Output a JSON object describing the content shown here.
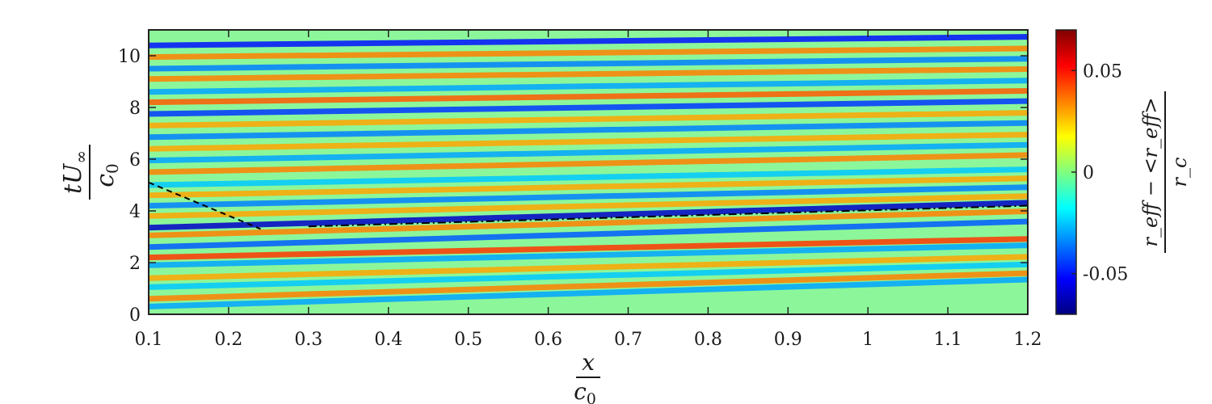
{
  "chart_data": {
    "type": "heatmap",
    "title": "",
    "colormap": "jet",
    "x_range": [
      0.1,
      1.2
    ],
    "y_range": [
      0,
      11
    ],
    "x_ticks": [
      0.1,
      0.2,
      0.3,
      0.4,
      0.5,
      0.6,
      0.7,
      0.8,
      0.9,
      1.0,
      1.1,
      1.2
    ],
    "x_tick_labels": [
      "0.1",
      "0.2",
      "0.3",
      "0.4",
      "0.5",
      "0.6",
      "0.7",
      "0.8",
      "0.9",
      "1",
      "1.1",
      "1.2"
    ],
    "y_ticks": [
      0,
      2,
      4,
      6,
      8,
      10
    ],
    "y_tick_labels": [
      "0",
      "2",
      "4",
      "6",
      "8",
      "10"
    ],
    "xlabel": {
      "numerator": "x",
      "denominator": "c",
      "denominator_sub": "0"
    },
    "ylabel": {
      "numerator": "tU",
      "numerator_sub": "∞",
      "denominator": "c",
      "denominator_sub": "0"
    },
    "colorbar": {
      "range": [
        -0.07,
        0.07
      ],
      "ticks": [
        -0.05,
        0,
        0.05
      ],
      "tick_labels": [
        "-0.05",
        "0",
        "0.05"
      ],
      "label": {
        "numerator": "r_eff − <r_eff>",
        "denominator": "r_c"
      }
    },
    "overlay_lines": [
      {
        "style": "dashed",
        "points": [
          [
            0.1,
            5.1
          ],
          [
            0.24,
            3.3
          ]
        ]
      },
      {
        "style": "dash-dot",
        "points": [
          [
            0.3,
            3.4
          ],
          [
            1.2,
            4.2
          ]
        ]
      }
    ],
    "bands": [
      {
        "t0": 0.3,
        "slope": 0.95,
        "value": -0.03
      },
      {
        "t0": 0.6,
        "slope": 0.9,
        "value": 0.035
      },
      {
        "t0": 1.05,
        "slope": 0.8,
        "value": -0.025
      },
      {
        "t0": 1.4,
        "slope": 0.75,
        "value": 0.03
      },
      {
        "t0": 1.9,
        "slope": 0.7,
        "value": -0.03
      },
      {
        "t0": 2.2,
        "slope": 0.65,
        "value": 0.045
      },
      {
        "t0": 2.6,
        "slope": 0.9,
        "value": -0.04
      },
      {
        "t0": 3.05,
        "slope": 0.85,
        "value": 0.035
      },
      {
        "t0": 3.35,
        "slope": 0.88,
        "value": -0.06
      },
      {
        "t0": 3.8,
        "slope": 0.7,
        "value": 0.03
      },
      {
        "t0": 4.2,
        "slope": 0.65,
        "value": -0.035
      },
      {
        "t0": 4.6,
        "slope": 0.6,
        "value": 0.03
      },
      {
        "t0": 5.0,
        "slope": 0.55,
        "value": -0.025
      },
      {
        "t0": 5.5,
        "slope": 0.6,
        "value": 0.035
      },
      {
        "t0": 5.95,
        "slope": 0.55,
        "value": -0.03
      },
      {
        "t0": 6.4,
        "slope": 0.5,
        "value": 0.03
      },
      {
        "t0": 6.85,
        "slope": 0.5,
        "value": -0.035
      },
      {
        "t0": 7.3,
        "slope": 0.45,
        "value": 0.03
      },
      {
        "t0": 7.75,
        "slope": 0.45,
        "value": -0.045
      },
      {
        "t0": 8.2,
        "slope": 0.4,
        "value": 0.04
      },
      {
        "t0": 8.6,
        "slope": 0.4,
        "value": -0.03
      },
      {
        "t0": 9.1,
        "slope": 0.35,
        "value": 0.035
      },
      {
        "t0": 9.5,
        "slope": 0.35,
        "value": -0.035
      },
      {
        "t0": 9.95,
        "slope": 0.3,
        "value": 0.035
      },
      {
        "t0": 10.4,
        "slope": 0.3,
        "value": -0.05
      }
    ]
  }
}
